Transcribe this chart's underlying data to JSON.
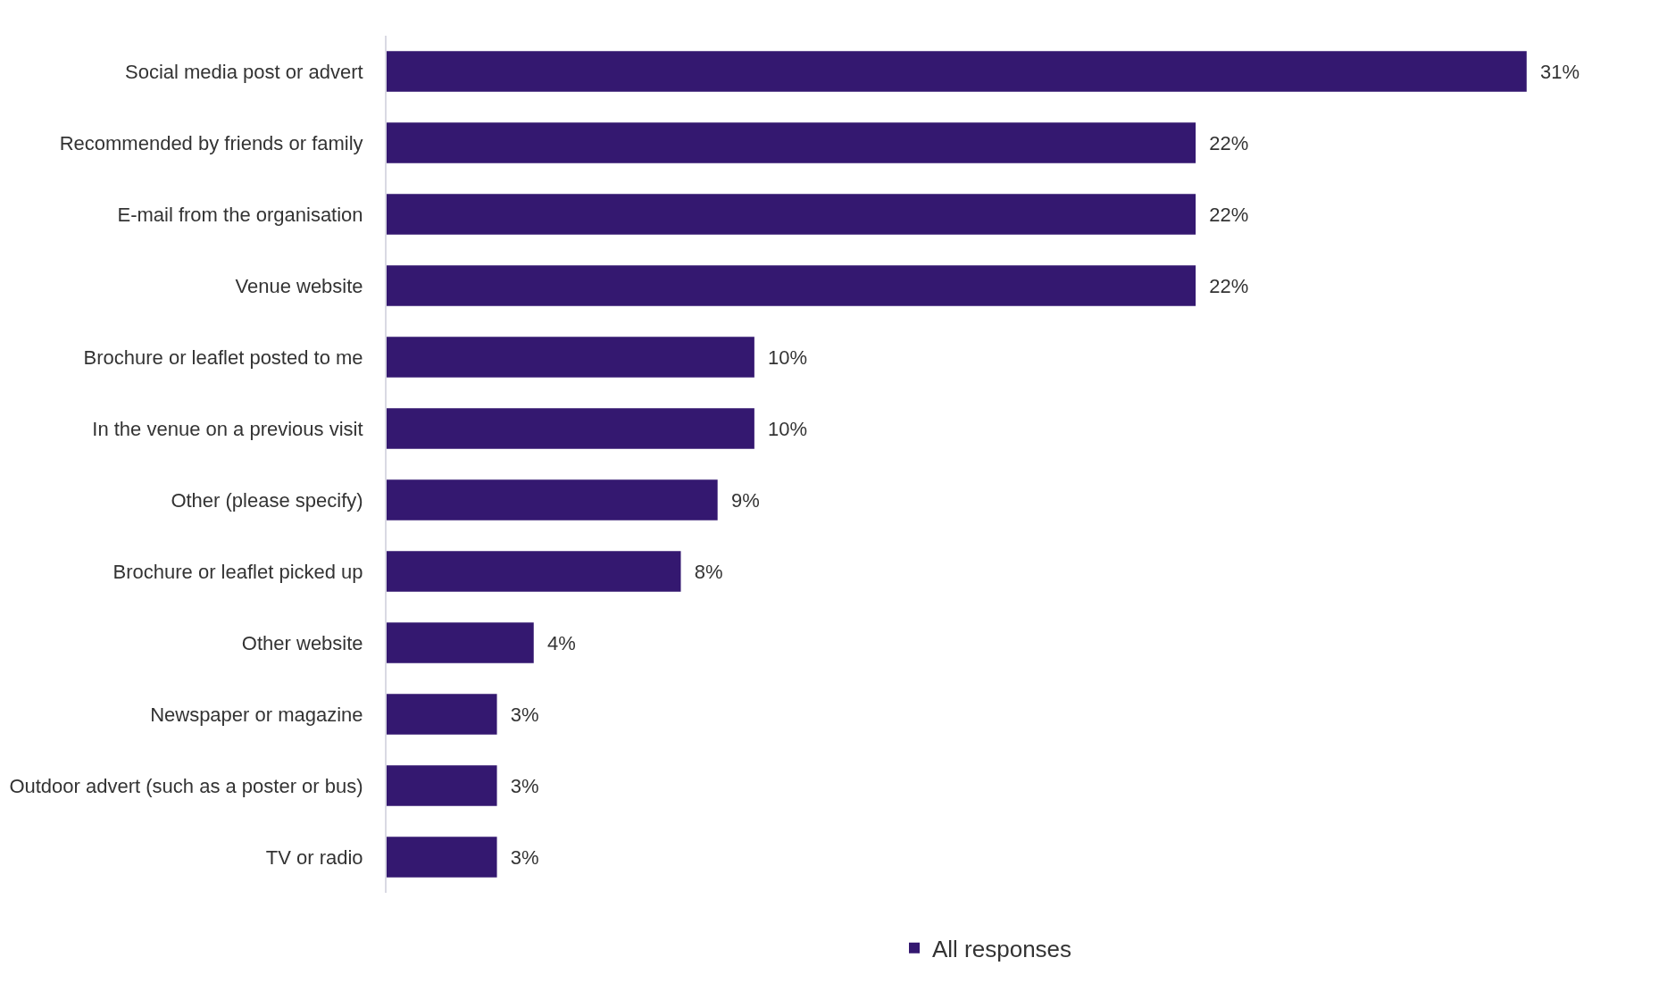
{
  "chart_data": {
    "type": "bar",
    "orientation": "horizontal",
    "categories": [
      "Social media post or advert",
      "Recommended by friends or family",
      "E-mail from the organisation",
      "Venue website",
      "Brochure or leaflet posted to me",
      "In the venue on a previous visit",
      "Other (please specify)",
      "Brochure or leaflet picked up",
      "Other website",
      "Newspaper or magazine",
      "Outdoor advert (such as a poster or bus)",
      "TV or radio"
    ],
    "series": [
      {
        "name": "All responses",
        "color": "#341870",
        "values": [
          31,
          22,
          22,
          22,
          10,
          10,
          9,
          8,
          4,
          3,
          3,
          3
        ],
        "value_labels": [
          "31%",
          "22%",
          "22%",
          "22%",
          "10%",
          "10%",
          "9%",
          "8%",
          "4%",
          "3%",
          "3%",
          "3%"
        ]
      }
    ],
    "legend": "bottom"
  }
}
